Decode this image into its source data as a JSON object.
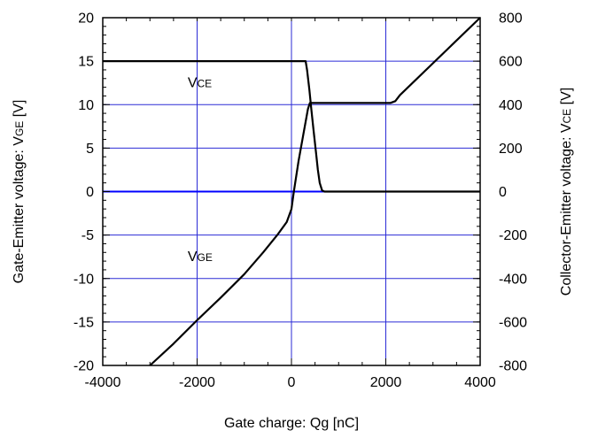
{
  "chart_data": {
    "type": "line",
    "xlabel": "Gate charge: Qg [nC]",
    "ylabel_left": {
      "main": "Gate-Emitter voltage:  V",
      "sub": "GE",
      "unit": " [V]"
    },
    "ylabel_right": {
      "main": "Collector-Emitter voltage: V",
      "sub": "CE",
      "unit": " [V]"
    },
    "xlim": [
      -4000,
      4000
    ],
    "ylim_left": [
      -20,
      20
    ],
    "ylim_right": [
      -800,
      800
    ],
    "x_ticks": [
      -4000,
      -2000,
      0,
      2000,
      4000
    ],
    "y_ticks_left": [
      -20,
      -15,
      -10,
      -5,
      0,
      5,
      10,
      15,
      20
    ],
    "y_ticks_right": [
      -800,
      -600,
      -400,
      -200,
      0,
      200,
      400,
      600,
      800
    ],
    "grid": true,
    "zero_line_color": "#0000ff",
    "grid_color": "#2b2bd6",
    "line_color": "#000000",
    "annotations": [
      {
        "main": "V",
        "sub": "CE",
        "x": -2200,
        "y": 12
      },
      {
        "main": "V",
        "sub": "GE",
        "x": -2200,
        "y": -8
      }
    ],
    "series": [
      {
        "axis": "right",
        "points": [
          [
            -4000,
            600
          ],
          [
            250,
            600
          ],
          [
            300,
            600
          ],
          [
            330,
            560
          ],
          [
            380,
            470
          ],
          [
            420,
            380
          ],
          [
            470,
            280
          ],
          [
            520,
            180
          ],
          [
            560,
            100
          ],
          [
            600,
            40
          ],
          [
            650,
            5
          ],
          [
            700,
            0
          ],
          [
            4000,
            0
          ]
        ]
      },
      {
        "axis": "left",
        "points": [
          [
            -3000,
            -20
          ],
          [
            -2500,
            -17.5
          ],
          [
            -2000,
            -14.8
          ],
          [
            -1500,
            -12.2
          ],
          [
            -1000,
            -9.5
          ],
          [
            -600,
            -7
          ],
          [
            -300,
            -5
          ],
          [
            -100,
            -3.5
          ],
          [
            0,
            -2
          ],
          [
            50,
            0
          ],
          [
            150,
            3.5
          ],
          [
            250,
            6.5
          ],
          [
            350,
            9.5
          ],
          [
            390,
            10.2
          ],
          [
            420,
            10.2
          ],
          [
            2100,
            10.2
          ],
          [
            2200,
            10.4
          ],
          [
            2300,
            11.1
          ],
          [
            4000,
            20
          ]
        ]
      }
    ]
  }
}
